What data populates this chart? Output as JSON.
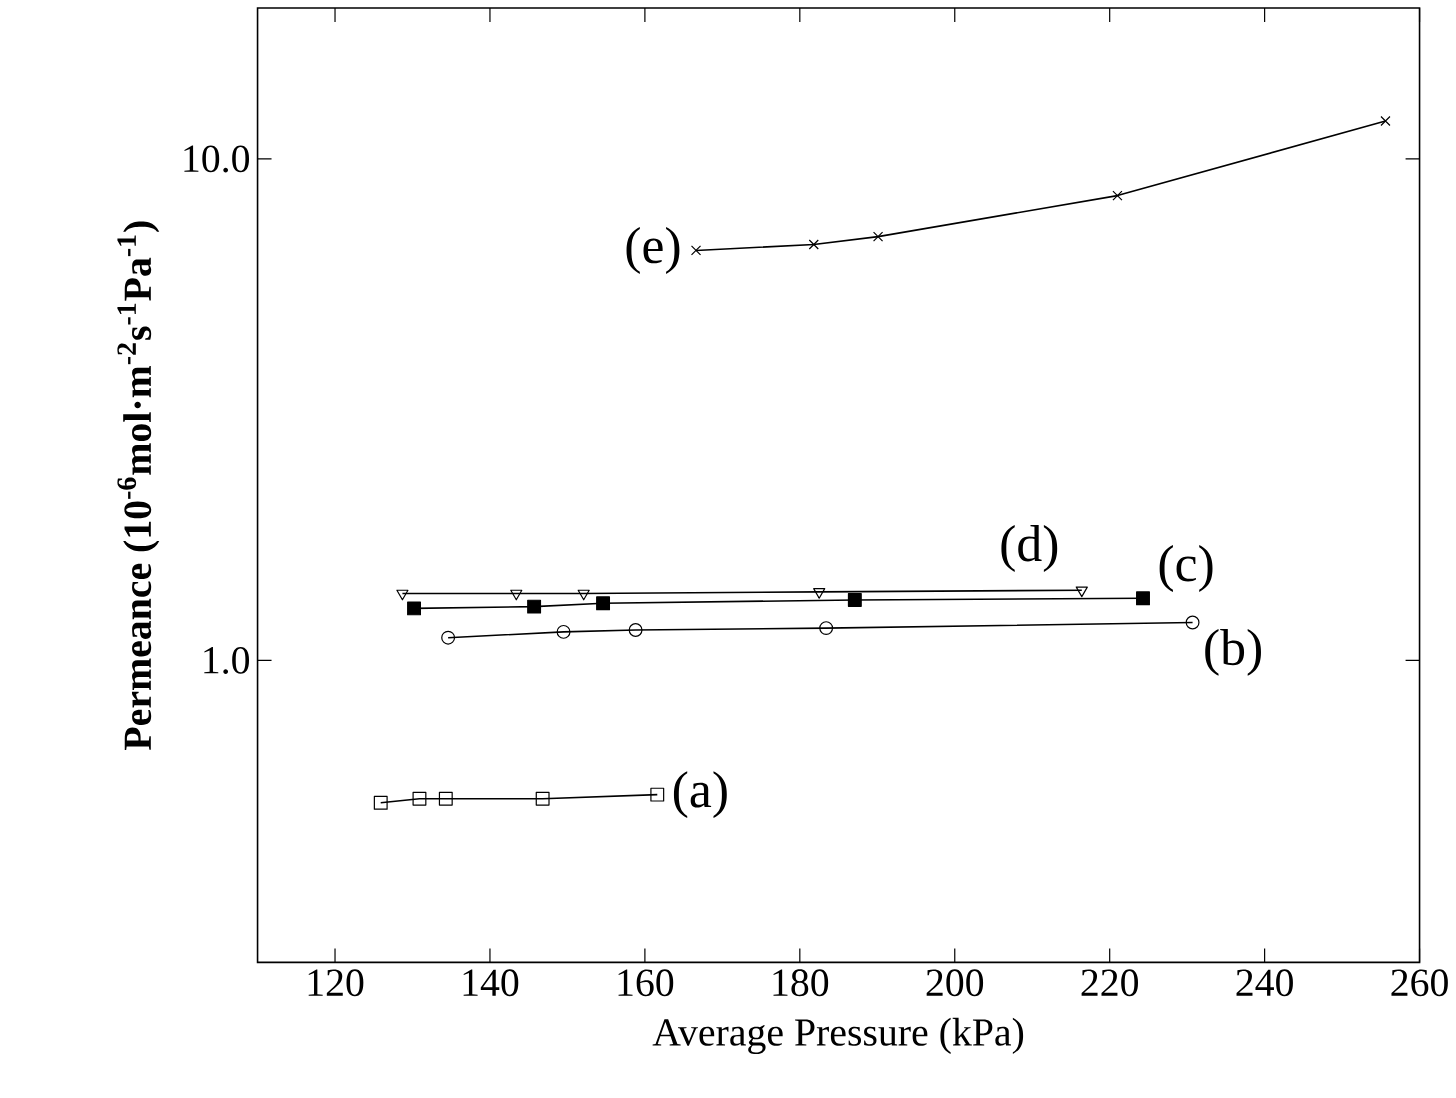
{
  "chart_data": {
    "type": "line",
    "xlabel": "Average Pressure (kPa)",
    "ylabel": "Permeance (10$^{-6}$mol·m$^{-2}$s$^{-1}$Pa$^{-1}$)",
    "log": "y",
    "xlim": [
      110,
      260
    ],
    "xticks": [
      120,
      140,
      160,
      180,
      200,
      220,
      240,
      260
    ],
    "ylim": [
      0.25,
      20
    ],
    "yticks": [
      {
        "value": 1,
        "label": "1.0"
      },
      {
        "value": 10,
        "label": "10.0"
      }
    ],
    "line_style": "solid",
    "series": [
      {
        "name": "(a)",
        "color": "#000000",
        "marker": "square",
        "x": [
          125.9,
          130.9,
          134.3,
          146.8,
          161.6
        ],
        "values": [
          0.52,
          0.53,
          0.53,
          0.53,
          0.54
        ]
      },
      {
        "name": "(b)",
        "color": "#000000",
        "marker": "circle",
        "x": [
          134.6,
          149.5,
          158.8,
          183.4,
          230.7
        ],
        "values": [
          1.11,
          1.14,
          1.15,
          1.16,
          1.19
        ]
      },
      {
        "name": "(c)",
        "color": "#000000",
        "marker": "square",
        "x": [
          130.2,
          145.7,
          154.6,
          187.1,
          224.3
        ],
        "values": [
          1.27,
          1.28,
          1.3,
          1.32,
          1.33
        ]
      },
      {
        "name": "(d)",
        "color": "#000000",
        "marker": "triangle",
        "x": [
          128.7,
          143.4,
          152.1,
          182.5,
          216.4
        ],
        "values": [
          1.36,
          1.36,
          1.36,
          1.37,
          1.38
        ]
      },
      {
        "name": "(e)",
        "color": "#000000",
        "marker": "cross",
        "x": [
          166.6,
          181.8,
          190.1,
          221.0,
          255.6
        ],
        "values": [
          6.57,
          6.75,
          7.0,
          8.45,
          11.9
        ]
      }
    ]
  }
}
